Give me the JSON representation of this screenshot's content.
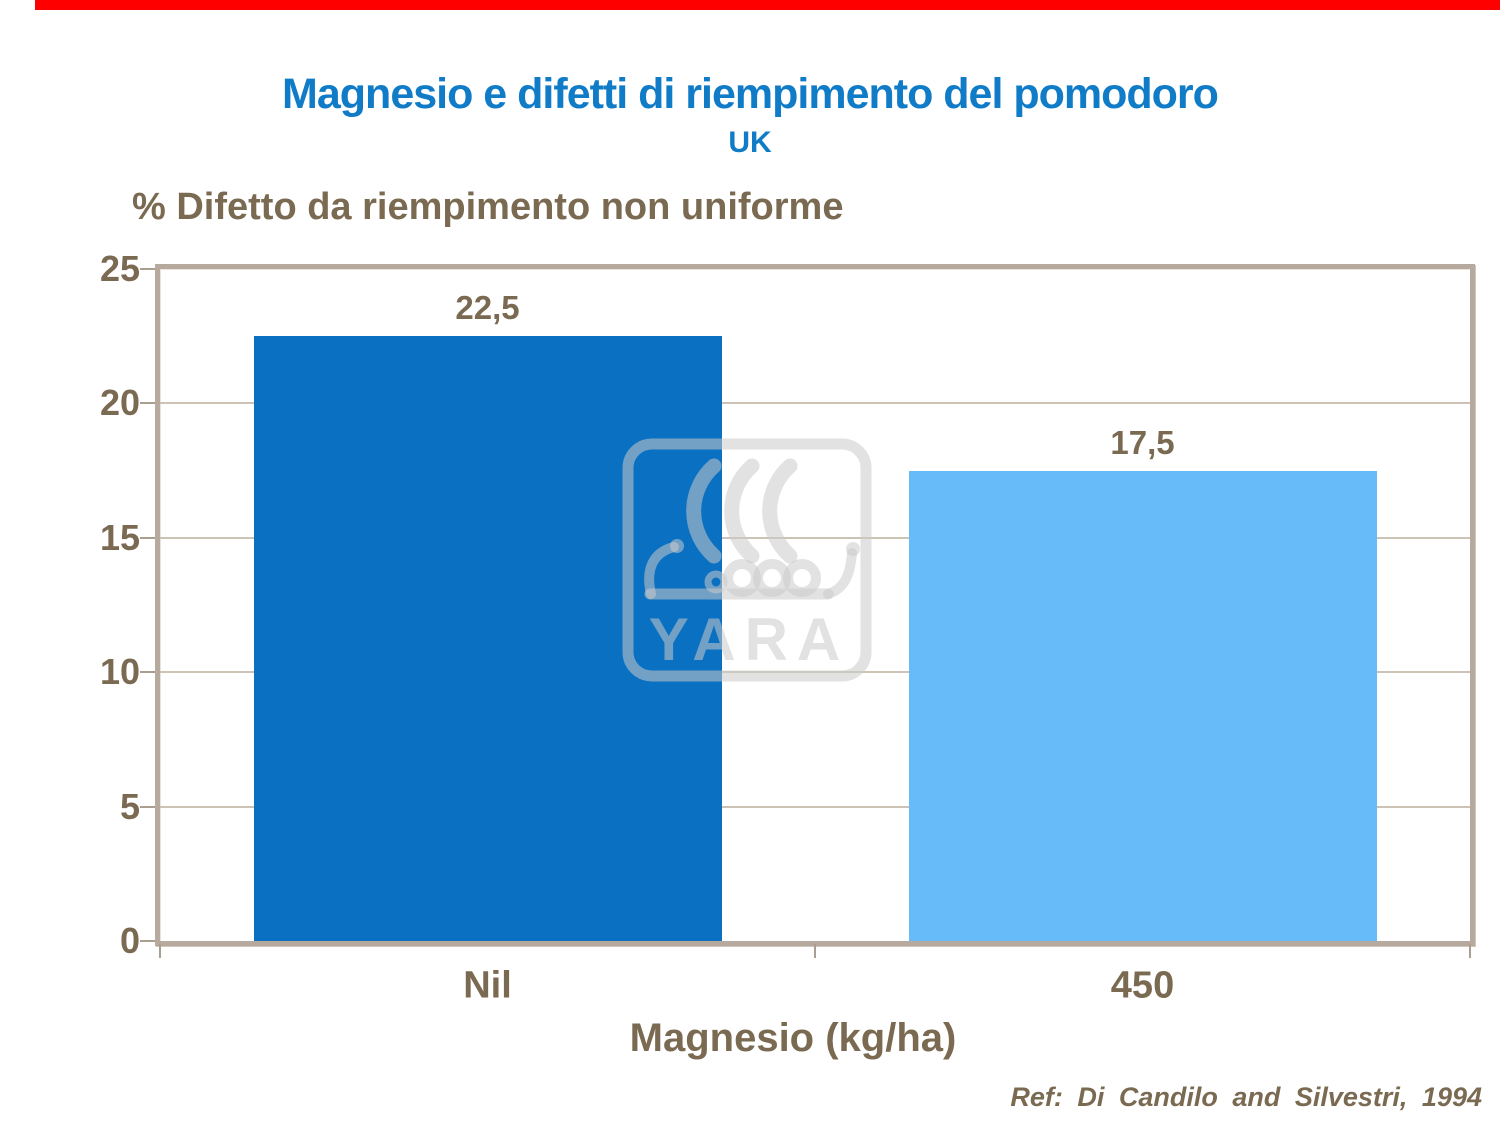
{
  "slide": {
    "top_bar_color": "#ff0000",
    "reference": "Ref: Di Candilo and Silvestri, 1994",
    "watermark_text": "YARA",
    "text_brown": "#7b6a52",
    "title_blue": "#107cc8",
    "frame_color": "#b5aa9d",
    "gridline_color": "#cdc3b5"
  },
  "chart_data": {
    "type": "bar",
    "title": "Magnesio e difetti di riempimento del pomodoro",
    "subtitle": "UK",
    "categories": [
      "Nil",
      "450"
    ],
    "values": [
      22.5,
      17.5
    ],
    "value_labels": [
      "22,5",
      "17,5"
    ],
    "bar_colors": [
      "#0a70c2",
      "#66bbf8"
    ],
    "xlabel": "Magnesio (kg/ha)",
    "ylabel": "% Difetto da riempimento non uniforme",
    "ylim": [
      0,
      25
    ],
    "yticks": [
      0,
      5,
      10,
      15,
      20,
      25
    ],
    "grid": true,
    "legend": "none"
  }
}
